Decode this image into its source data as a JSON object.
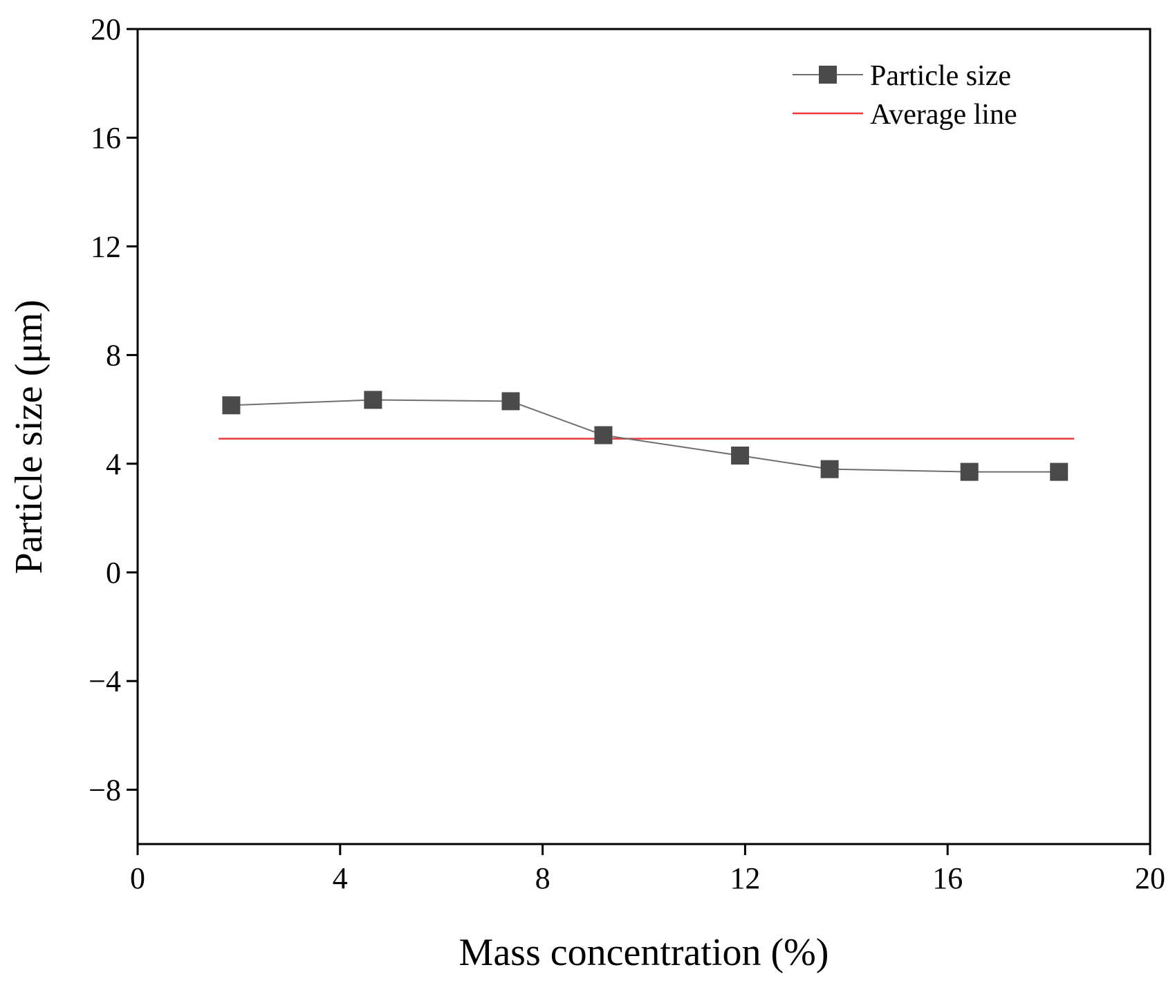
{
  "chart_data": {
    "type": "line",
    "title": "",
    "xlabel": "Mass concentration (%)",
    "ylabel": "Particle size (μm)",
    "xlim": [
      0,
      20
    ],
    "ylim": [
      -10,
      20
    ],
    "xticks": [
      0,
      4,
      8,
      12,
      16,
      20
    ],
    "yticks": [
      -8,
      -4,
      0,
      4,
      8,
      12,
      16,
      20
    ],
    "xtick_labels": [
      "0",
      "4",
      "8",
      "12",
      "16",
      "20"
    ],
    "ytick_labels": [
      "−8",
      "−4",
      "0",
      "4",
      "8",
      "12",
      "16",
      "20"
    ],
    "grid": false,
    "legend_position": "top-right",
    "series": [
      {
        "name": "Particle size",
        "marker": "square",
        "color": "#4a4a4a",
        "line_color": "#6e6e6e",
        "x": [
          1.85,
          4.65,
          7.37,
          9.2,
          11.9,
          13.67,
          16.43,
          18.2
        ],
        "y": [
          6.15,
          6.35,
          6.3,
          5.05,
          4.3,
          3.8,
          3.7,
          3.7
        ]
      },
      {
        "name": "Average line",
        "color": "#e8393d",
        "x": [
          1.6,
          18.5
        ],
        "y": [
          4.92,
          4.92
        ]
      }
    ]
  }
}
